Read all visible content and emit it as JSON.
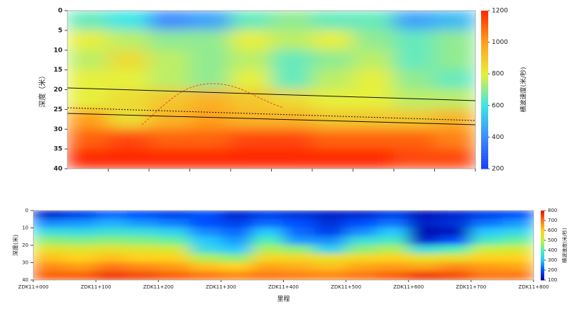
{
  "chart_data": [
    {
      "type": "heatmap",
      "ylabel": "深度（米）",
      "colorbar_label": "横波速度(米/秒)",
      "ylim": [
        0,
        40
      ],
      "yticks": [
        0,
        5,
        10,
        15,
        20,
        25,
        30,
        35,
        40
      ],
      "invert_y": true,
      "zlim": [
        200,
        1200
      ],
      "zticks": [
        200,
        400,
        600,
        800,
        1000,
        1200
      ],
      "colorscale": [
        "#1e3cff",
        "#3c8cff",
        "#3ce6e6",
        "#e6f03c",
        "#ffa01e",
        "#ff2800"
      ],
      "z": [
        [
          650,
          600,
          400,
          450,
          650,
          700,
          650,
          650,
          450,
          500
        ],
        [
          800,
          750,
          700,
          700,
          800,
          750,
          800,
          700,
          650,
          700
        ],
        [
          750,
          850,
          750,
          700,
          750,
          650,
          700,
          750,
          650,
          700
        ],
        [
          800,
          800,
          750,
          700,
          800,
          650,
          750,
          800,
          700,
          650
        ],
        [
          800,
          850,
          900,
          950,
          900,
          850,
          800,
          800,
          750,
          750
        ],
        [
          1000,
          850,
          950,
          1000,
          950,
          950,
          900,
          900,
          900,
          950
        ],
        [
          1100,
          1150,
          1100,
          1100,
          1150,
          1150,
          1100,
          1100,
          1100,
          1050
        ],
        [
          1200,
          1200,
          1200,
          1200,
          1200,
          1200,
          1200,
          1200,
          1150,
          1150
        ]
      ]
    },
    {
      "type": "heatmap",
      "ylabel": "深度(米)",
      "xlabel": "里程",
      "colorbar_label": "横波速度(米/秒)",
      "xlim": [
        0,
        800
      ],
      "xticks": [
        {
          "value": 0,
          "label": "ZDK11+000"
        },
        {
          "value": 100,
          "label": "ZDK11+100"
        },
        {
          "value": 200,
          "label": "ZDK11+200"
        },
        {
          "value": 300,
          "label": "ZDK11+300"
        },
        {
          "value": 400,
          "label": "ZDK11+400"
        },
        {
          "value": 500,
          "label": "ZDK11+500"
        },
        {
          "value": 600,
          "label": "ZDK11+600"
        },
        {
          "value": 700,
          "label": "ZDK11+700"
        },
        {
          "value": 800,
          "label": "ZDK11+800"
        }
      ],
      "ylim": [
        0,
        40
      ],
      "yticks": [
        0,
        10,
        20,
        30,
        40
      ],
      "invert_y": true,
      "zlim": [
        100,
        800
      ],
      "zticks": [
        100,
        200,
        300,
        400,
        500,
        600,
        700,
        800
      ],
      "colorscale": [
        "#0000a0",
        "#0050ff",
        "#28c8ff",
        "#50f0b4",
        "#c8f03c",
        "#ffd21e",
        "#ff7814",
        "#e61400"
      ],
      "z": [
        [
          150,
          180,
          220,
          200,
          180,
          200,
          150,
          180,
          160,
          140,
          150,
          180,
          130,
          150,
          180,
          200
        ],
        [
          250,
          260,
          280,
          260,
          240,
          200,
          180,
          220,
          200,
          160,
          200,
          230,
          140,
          160,
          230,
          260
        ],
        [
          350,
          340,
          360,
          350,
          320,
          250,
          220,
          300,
          220,
          180,
          250,
          300,
          120,
          130,
          300,
          330
        ],
        [
          450,
          440,
          450,
          440,
          420,
          300,
          260,
          400,
          260,
          250,
          350,
          380,
          150,
          200,
          380,
          420
        ],
        [
          550,
          540,
          550,
          540,
          520,
          350,
          300,
          480,
          450,
          320,
          450,
          480,
          350,
          400,
          500,
          520
        ],
        [
          620,
          600,
          620,
          600,
          600,
          480,
          450,
          580,
          580,
          550,
          580,
          600,
          550,
          560,
          600,
          600
        ],
        [
          680,
          660,
          700,
          680,
          660,
          620,
          600,
          650,
          640,
          620,
          650,
          660,
          650,
          680,
          660,
          650
        ],
        [
          720,
          720,
          760,
          740,
          720,
          700,
          680,
          700,
          690,
          680,
          700,
          720,
          760,
          740,
          700,
          700
        ]
      ]
    }
  ]
}
